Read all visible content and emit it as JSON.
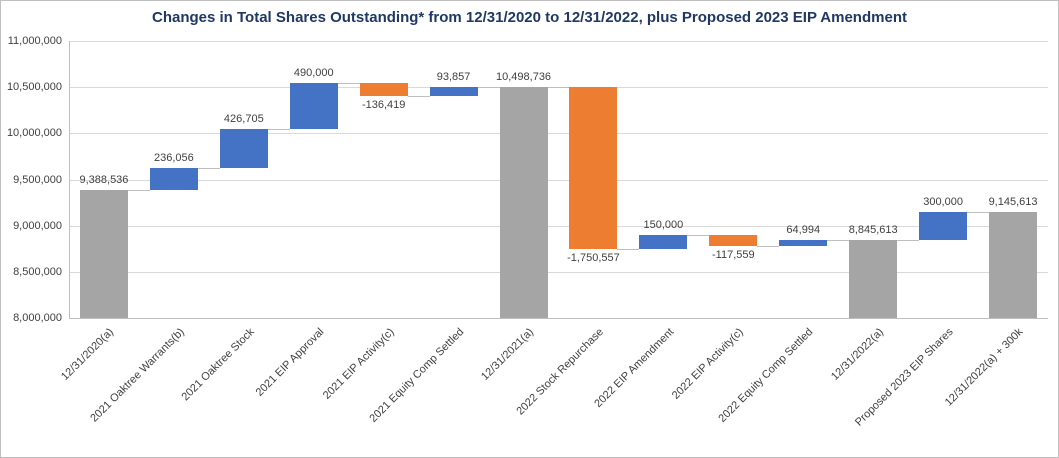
{
  "chart_data": {
    "type": "bar",
    "subtype": "waterfall",
    "title": "Changes in Total Shares Outstanding* from 12/31/2020 to 12/31/2022, plus Proposed 2023 EIP Amendment",
    "ylim": [
      8000000,
      11000000
    ],
    "ytick_step": 500000,
    "ytick_labels": [
      "8,000,000",
      "8,500,000",
      "9,000,000",
      "9,500,000",
      "10,000,000",
      "10,500,000",
      "11,000,000"
    ],
    "grid": true,
    "legend": "none",
    "steps": [
      {
        "category": "12/31/2020(a)",
        "kind": "total",
        "value": 9388536,
        "data_label": "9,388,536"
      },
      {
        "category": "2021 Oaktree Warrants(b)",
        "kind": "increase",
        "value": 236056,
        "data_label": "236,056"
      },
      {
        "category": "2021 Oaktree Stock",
        "kind": "increase",
        "value": 426705,
        "data_label": "426,705"
      },
      {
        "category": "2021 EIP Approval",
        "kind": "increase",
        "value": 490000,
        "data_label": "490,000"
      },
      {
        "category": "2021 EIP Activity(c)",
        "kind": "decrease",
        "value": -136419,
        "data_label": "-136,419"
      },
      {
        "category": "2021 Equity Comp Settled",
        "kind": "increase",
        "value": 93857,
        "data_label": "93,857"
      },
      {
        "category": "12/31/2021(a)",
        "kind": "total",
        "value": 10498736,
        "data_label": "10,498,736"
      },
      {
        "category": "2022 Stock Repurchase",
        "kind": "decrease",
        "value": -1750557,
        "data_label": "-1,750,557"
      },
      {
        "category": "2022 EIP Amendment",
        "kind": "increase",
        "value": 150000,
        "data_label": "150,000"
      },
      {
        "category": "2022 EIP Activity(c)",
        "kind": "decrease",
        "value": -117559,
        "data_label": "-117,559"
      },
      {
        "category": "2022 Equity Comp Settled",
        "kind": "increase",
        "value": 64994,
        "data_label": "64,994"
      },
      {
        "category": "12/31/2022(a)",
        "kind": "total",
        "value": 8845613,
        "data_label": "8,845,613"
      },
      {
        "category": "Proposed 2023 EIP Shares",
        "kind": "increase",
        "value": 300000,
        "data_label": "300,000"
      },
      {
        "category": "12/31/2022(a) + 300k",
        "kind": "total",
        "value": 9145613,
        "data_label": "9,145,613"
      }
    ],
    "colors": {
      "increase": "#4472c4",
      "decrease": "#ed7d31",
      "total": "#a5a5a5",
      "gridline": "#d9d9d9",
      "axis_line": "#bfbfbf",
      "title": "#1f3864",
      "label_text": "#404040"
    }
  }
}
